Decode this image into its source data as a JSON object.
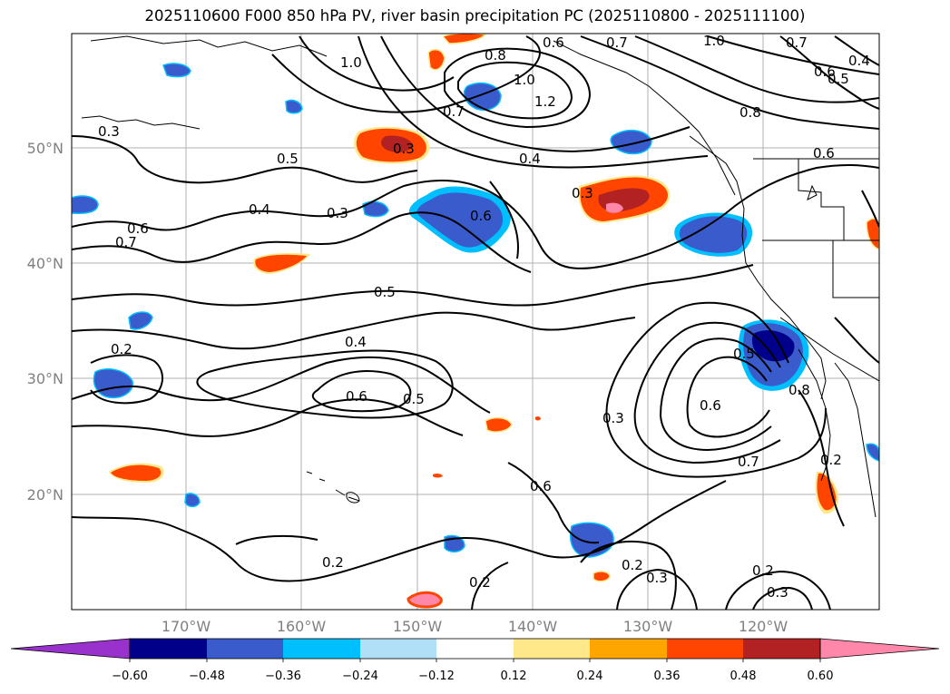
{
  "title": "2025110600 F000 850 hPa PV, river basin precipitation PC (2025110800 - 2025111100)",
  "lat_labels": [
    "50°N",
    "40°N",
    "30°N",
    "20°N"
  ],
  "lon_labels": [
    "170°W",
    "160°W",
    "150°W",
    "140°W",
    "130°W",
    "120°W"
  ],
  "contour_labels": [
    "0.3",
    "1.0",
    "0.6",
    "0.7",
    "1.0",
    "0.7",
    "0.6",
    "0.5",
    "0.4",
    "0.8",
    "1.0",
    "1.2",
    "0.7",
    "0.8",
    "0.6",
    "0.3",
    "0.5",
    "0.4",
    "0.3",
    "0.3",
    "0.6",
    "0.6",
    "0.7",
    "0.5",
    "0.4",
    "0.6",
    "0.5",
    "0.2",
    "0.5",
    "0.3",
    "0.6",
    "0.8",
    "0.6",
    "0.7",
    "0.2",
    "0.4",
    "0.2",
    "0.2",
    "0.3",
    "0.2",
    "0.3",
    "0.2"
  ],
  "colorbar": {
    "ticks": [
      "−0.60",
      "−0.48",
      "−0.36",
      "−0.24",
      "−0.12",
      "0.12",
      "0.24",
      "0.36",
      "0.48",
      "0.60"
    ],
    "colors": {
      "under": "#9932cc",
      "b1": "#00008b",
      "b2": "#3a5bcc",
      "b3": "#00bfff",
      "b4": "#b0e0f8",
      "mid": "#ffffff",
      "r1": "#ffe88a",
      "r2": "#ffa500",
      "r3": "#ff4500",
      "r4": "#b22222",
      "over": "#ff88aa"
    }
  }
}
